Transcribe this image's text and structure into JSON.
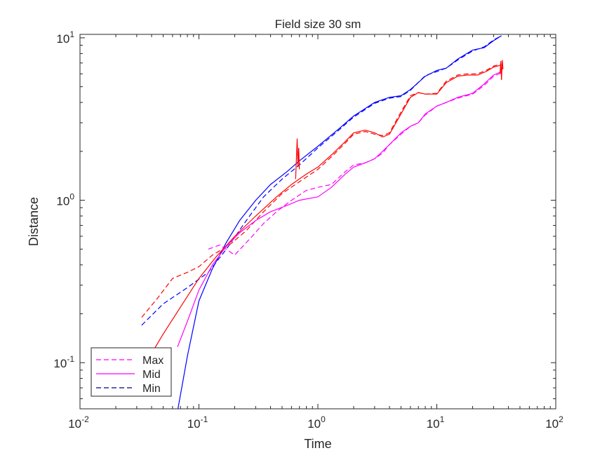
{
  "chart_data": {
    "type": "line",
    "title": "Field size 30 sm",
    "xlabel": "Time",
    "ylabel": "Distance",
    "xscale": "log",
    "yscale": "log",
    "xlim": [
      0.01,
      100
    ],
    "ylim": [
      0.052,
      10.5
    ],
    "xticks": [
      {
        "value": 0.01,
        "base": "10",
        "exp": "-2"
      },
      {
        "value": 0.1,
        "base": "10",
        "exp": "-1"
      },
      {
        "value": 1,
        "base": "10",
        "exp": "0"
      },
      {
        "value": 10,
        "base": "10",
        "exp": "1"
      },
      {
        "value": 100,
        "base": "10",
        "exp": "2"
      }
    ],
    "yticks": [
      {
        "value": 0.1,
        "base": "10",
        "exp": "-1"
      },
      {
        "value": 1,
        "base": "10",
        "exp": "0"
      },
      {
        "value": 10,
        "base": "10",
        "exp": "1"
      }
    ],
    "grid": false,
    "legend": {
      "position": "bottom-left",
      "entries": [
        {
          "label": "Max",
          "color": "#ff00ff",
          "dash": "dashed"
        },
        {
          "label": "Mid",
          "color": "#ff00ff",
          "dash": "solid"
        },
        {
          "label": "Min",
          "color": "#000080",
          "dash": "dashed"
        }
      ]
    },
    "series": [
      {
        "key": "blue-solid",
        "color": "#0000ff",
        "dash": "solid",
        "x": [
          0.066,
          0.08,
          0.1,
          0.13,
          0.17,
          0.22,
          0.3,
          0.4,
          0.55,
          0.7,
          1.0,
          1.5,
          2.0,
          3.0,
          4.0,
          5.0,
          6.0,
          8.0,
          10.0,
          12.0,
          15.0,
          20.0,
          25.0,
          30.0,
          35.0
        ],
        "y": [
          0.05,
          0.11,
          0.24,
          0.38,
          0.55,
          0.75,
          1.0,
          1.25,
          1.5,
          1.75,
          2.15,
          2.75,
          3.3,
          4.0,
          4.3,
          4.4,
          4.8,
          5.8,
          6.3,
          6.5,
          7.4,
          8.4,
          8.7,
          9.6,
          10.3
        ]
      },
      {
        "key": "blue-dashed",
        "color": "#0000ff",
        "dash": "dashed",
        "x": [
          0.033,
          0.05,
          0.08,
          0.12,
          0.17,
          0.25,
          0.35,
          0.5,
          0.7,
          1.0,
          1.5,
          2.0,
          3.0,
          4.0,
          5.0,
          6.0,
          8.0,
          10.0,
          12.0,
          15.0,
          20.0,
          25.0,
          30.0,
          35.0
        ],
        "y": [
          0.17,
          0.23,
          0.29,
          0.36,
          0.5,
          0.75,
          1.05,
          1.35,
          1.65,
          2.1,
          2.7,
          3.25,
          3.95,
          4.25,
          4.35,
          4.75,
          5.85,
          6.2,
          6.5,
          7.3,
          8.3,
          8.8,
          9.7,
          10.3
        ]
      },
      {
        "key": "red-solid",
        "color": "#ff0000",
        "dash": "solid",
        "x": [
          0.033,
          0.05,
          0.07,
          0.1,
          0.14,
          0.2,
          0.3,
          0.45,
          0.6,
          0.8,
          1.0,
          1.3,
          1.7,
          2.0,
          2.5,
          3.0,
          3.5,
          4.0,
          5.0,
          6.0,
          7.0,
          8.0,
          10.0,
          12.0,
          15.0,
          18.0,
          22.0,
          26.0,
          30.0,
          35.0
        ],
        "y": [
          0.09,
          0.15,
          0.22,
          0.33,
          0.45,
          0.6,
          0.8,
          1.05,
          1.25,
          1.45,
          1.6,
          1.9,
          2.3,
          2.6,
          2.7,
          2.6,
          2.45,
          2.55,
          3.4,
          4.3,
          4.6,
          4.5,
          4.5,
          5.3,
          5.8,
          5.9,
          5.9,
          6.2,
          6.6,
          6.8
        ]
      },
      {
        "key": "red-dashed",
        "color": "#ff0000",
        "dash": "dashed",
        "x": [
          0.033,
          0.045,
          0.06,
          0.08,
          0.1,
          0.13,
          0.18,
          0.25,
          0.35,
          0.5,
          0.7,
          1.0,
          1.3,
          1.7,
          2.0,
          2.5,
          3.0,
          3.5,
          4.0,
          5.0,
          6.0,
          7.0,
          8.0,
          10.0,
          12.0,
          15.0,
          18.0,
          22.0,
          26.0,
          30.0,
          35.0
        ],
        "y": [
          0.19,
          0.25,
          0.33,
          0.36,
          0.39,
          0.46,
          0.53,
          0.65,
          0.85,
          1.1,
          1.3,
          1.55,
          1.85,
          2.25,
          2.55,
          2.65,
          2.55,
          2.5,
          2.6,
          3.5,
          4.4,
          4.6,
          4.5,
          4.55,
          5.4,
          5.9,
          6.0,
          6.0,
          6.3,
          6.7,
          6.9
        ]
      },
      {
        "key": "red-spike",
        "color": "#ff0000",
        "dash": "solid",
        "x": [
          0.65,
          0.66,
          0.67,
          0.68,
          0.69,
          0.7
        ],
        "y": [
          1.35,
          1.8,
          2.4,
          1.6,
          2.1,
          1.55
        ]
      },
      {
        "key": "magenta-solid",
        "color": "#ff00ff",
        "dash": "solid",
        "x": [
          0.066,
          0.08,
          0.1,
          0.13,
          0.17,
          0.22,
          0.3,
          0.4,
          0.55,
          0.7,
          1.0,
          1.3,
          1.7,
          2.0,
          2.5,
          3.0,
          3.5,
          4.0,
          5.0,
          6.0,
          7.0,
          8.0,
          10.0,
          12.0,
          15.0,
          20.0,
          25.0,
          30.0,
          35.0
        ],
        "y": [
          0.125,
          0.18,
          0.28,
          0.4,
          0.52,
          0.63,
          0.75,
          0.85,
          0.93,
          1.0,
          1.05,
          1.2,
          1.45,
          1.6,
          1.7,
          1.8,
          2.0,
          2.2,
          2.6,
          2.85,
          3.0,
          3.4,
          3.8,
          4.0,
          4.3,
          4.55,
          5.2,
          5.9,
          6.2
        ]
      },
      {
        "key": "magenta-dashed",
        "color": "#ff00ff",
        "dash": "dashed",
        "x": [
          0.12,
          0.15,
          0.2,
          0.28,
          0.35,
          0.45,
          0.6,
          0.8,
          1.0,
          1.3,
          1.7,
          2.0,
          2.5,
          3.0,
          3.5,
          4.0,
          5.0,
          6.0,
          7.0,
          8.0,
          10.0,
          12.0,
          15.0,
          20.0,
          25.0,
          30.0,
          35.0
        ],
        "y": [
          0.5,
          0.53,
          0.46,
          0.6,
          0.72,
          0.85,
          1.0,
          1.15,
          1.2,
          1.25,
          1.5,
          1.65,
          1.7,
          1.8,
          1.95,
          2.2,
          2.55,
          2.85,
          3.0,
          3.35,
          3.8,
          4.0,
          4.25,
          4.5,
          5.1,
          5.8,
          6.1
        ]
      },
      {
        "key": "red-tail",
        "color": "#ff0000",
        "dash": "solid",
        "x": [
          34.0,
          34.5,
          35.0,
          35.5,
          36.0
        ],
        "y": [
          6.0,
          7.2,
          5.5,
          7.3,
          6.4
        ]
      }
    ]
  }
}
